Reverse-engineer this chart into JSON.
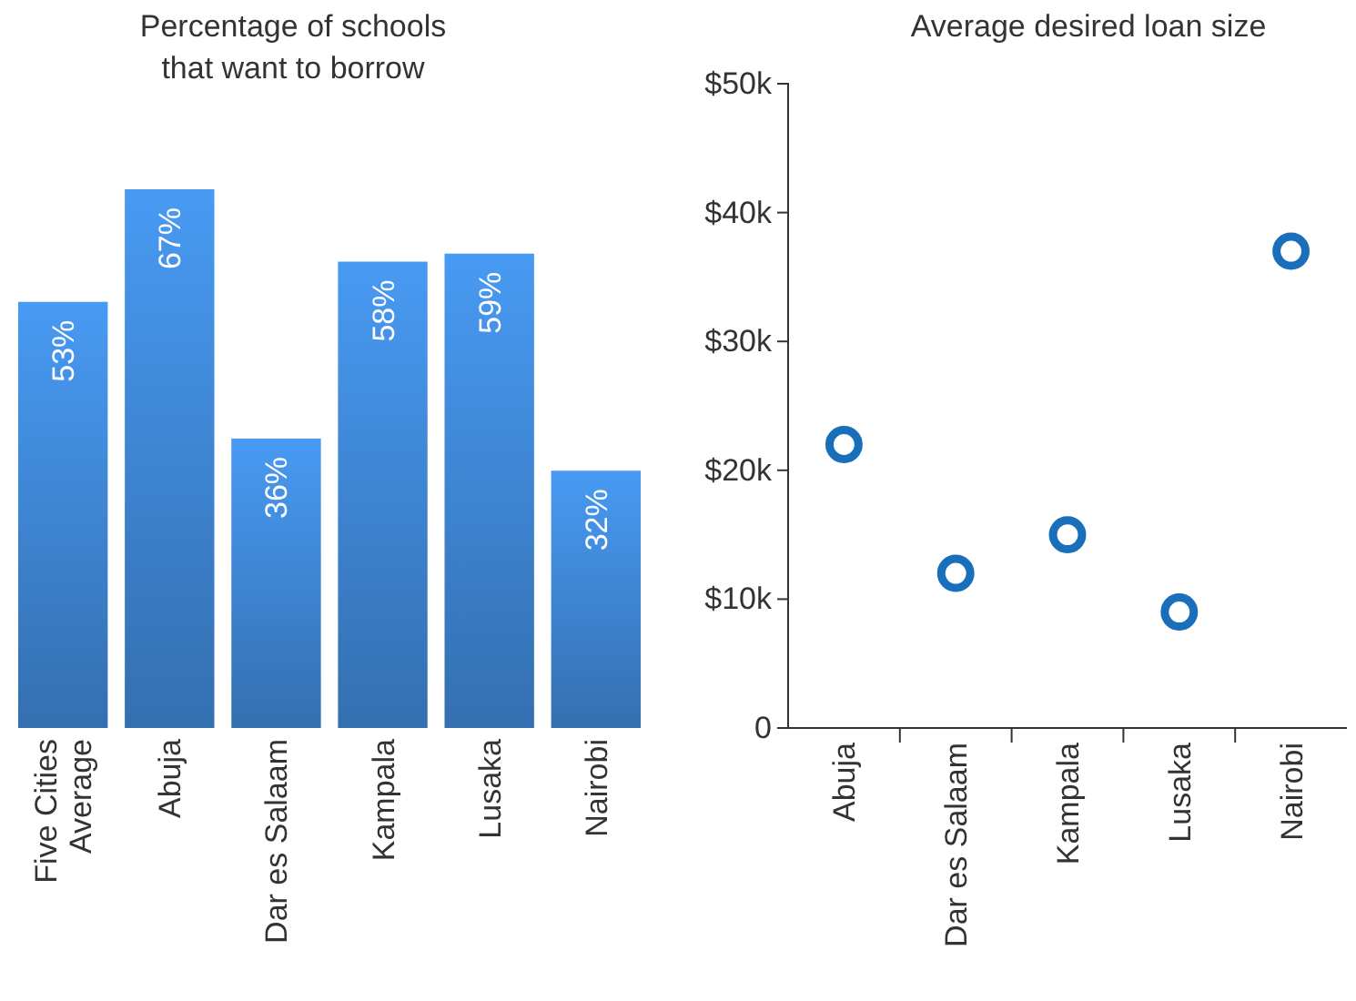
{
  "chart_data": [
    {
      "type": "bar",
      "title": "Percentage of schools\nthat want to borrow",
      "categories": [
        "Five Cities Average",
        "Abuja",
        "Dar es Salaam",
        "Kampala",
        "Lusaka",
        "Nairobi"
      ],
      "values": [
        53,
        67,
        36,
        58,
        59,
        32
      ],
      "value_labels": [
        "53%",
        "67%",
        "36%",
        "58%",
        "59%",
        "32%"
      ],
      "color": "#3a7cc4"
    },
    {
      "type": "scatter",
      "title": "Average desired loan size",
      "categories": [
        "Abuja",
        "Dar es Salaam",
        "Kampala",
        "Lusaka",
        "Nairobi"
      ],
      "values": [
        22000,
        12000,
        15000,
        9000,
        37000
      ],
      "color": "#1a6fba",
      "marker": "circle",
      "ylim": [
        0,
        50000
      ],
      "yticks": [
        {
          "value": 0,
          "label": "0"
        },
        {
          "value": 10000,
          "label": "$10k"
        },
        {
          "value": 20000,
          "label": "$20k"
        },
        {
          "value": 30000,
          "label": "$30k"
        },
        {
          "value": 40000,
          "label": "$40k"
        },
        {
          "value": 50000,
          "label": "$50k"
        }
      ]
    }
  ]
}
